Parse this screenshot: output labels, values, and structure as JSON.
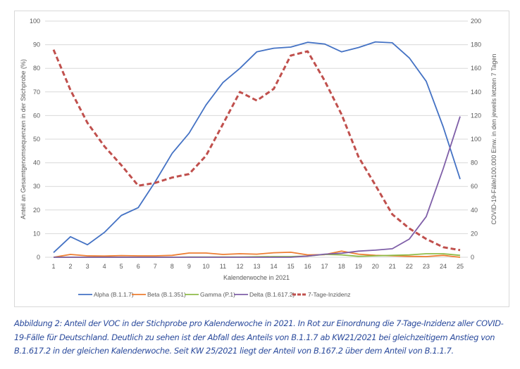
{
  "chart_data": {
    "type": "line",
    "xlabel": "Kalenderwoche in 2021",
    "ylabel_left": "Anteil an Gesamtgenomsequenzen in der Stichprobe (%)",
    "ylabel_right": "COVID-19-Fälle/100.000 Einw. in den jeweils letzten 7 Tagen",
    "ylim_left": [
      0,
      100
    ],
    "ylim_right": [
      0,
      200
    ],
    "yticks_left": [
      0,
      10,
      20,
      30,
      40,
      50,
      60,
      70,
      80,
      90,
      100
    ],
    "yticks_right": [
      0,
      20,
      40,
      60,
      80,
      100,
      120,
      140,
      160,
      180,
      200
    ],
    "grid": true,
    "legend_position": "bottom",
    "x": [
      1,
      2,
      3,
      4,
      5,
      6,
      7,
      8,
      9,
      10,
      11,
      12,
      13,
      14,
      15,
      16,
      17,
      18,
      19,
      20,
      21,
      22,
      23,
      24,
      25
    ],
    "series": [
      {
        "name": "Alpha (B.1.1.7)",
        "axis": "left",
        "color": "#4472c4",
        "dashed": false,
        "values": [
          2,
          8.7,
          5.3,
          10.5,
          17.7,
          21,
          32,
          44,
          52.5,
          64.5,
          74,
          80,
          87,
          88.5,
          89,
          91,
          90.3,
          87,
          88.8,
          91.2,
          90.8,
          84.4,
          74.5,
          55.2,
          33.1
        ]
      },
      {
        "name": "Beta (B.1.351)",
        "axis": "left",
        "color": "#ed7d31",
        "dashed": false,
        "values": [
          0,
          1.2,
          0.6,
          0.5,
          0.7,
          0.6,
          0.6,
          0.8,
          1.8,
          1.8,
          1.2,
          1.5,
          1.3,
          1.9,
          2.1,
          1.0,
          1.1,
          2.6,
          1.3,
          0.8,
          0.6,
          0.4,
          0.3,
          0.8,
          0
        ]
      },
      {
        "name": "Gamma (P.1)",
        "axis": "left",
        "color": "#8fbc4a",
        "dashed": false,
        "values": [
          0,
          0,
          0,
          0,
          0,
          0,
          0,
          0,
          0.1,
          0.1,
          0.1,
          0.1,
          0.2,
          0.3,
          0.3,
          0.5,
          1.2,
          1.0,
          0.4,
          0.6,
          0.8,
          1.0,
          1.5,
          1.5,
          0.8
        ]
      },
      {
        "name": "Delta (B.1.617.2)",
        "axis": "left",
        "color": "#7f5fa8",
        "dashed": false,
        "values": [
          0,
          0,
          0,
          0,
          0,
          0,
          0,
          0,
          0,
          0,
          0,
          0,
          0,
          0,
          0,
          0.5,
          1.3,
          1.7,
          2.6,
          3.0,
          3.6,
          7.7,
          17.2,
          37.5,
          59.6
        ]
      },
      {
        "name": "7-Tage-Inzidenz",
        "axis": "right",
        "color": "#c0504d",
        "dashed": true,
        "values": [
          175.8,
          141.6,
          113.8,
          94,
          78,
          60.6,
          63,
          67.5,
          70.5,
          86,
          112.8,
          140,
          132.7,
          142.6,
          170.8,
          174.4,
          149.6,
          121,
          85,
          61,
          36.3,
          24.4,
          15.5,
          8.5,
          6
        ]
      }
    ]
  },
  "caption": "Abbildung 2: Anteil der VOC in der Stichprobe pro Kalenderwoche in 2021. In Rot zur Einordnung die 7-Tage-Inzidenz aller COVID-19-Fälle für Deutschland. Deutlich zu sehen ist der Abfall des Anteils von B.1.1.7 ab KW21/2021 bei gleichzeitigem Anstieg von B.1.617.2 in der gleichen Kalenderwoche. Seit KW 25/2021 liegt der Anteil von B.167.2 über dem Anteil von B.1.1.7."
}
